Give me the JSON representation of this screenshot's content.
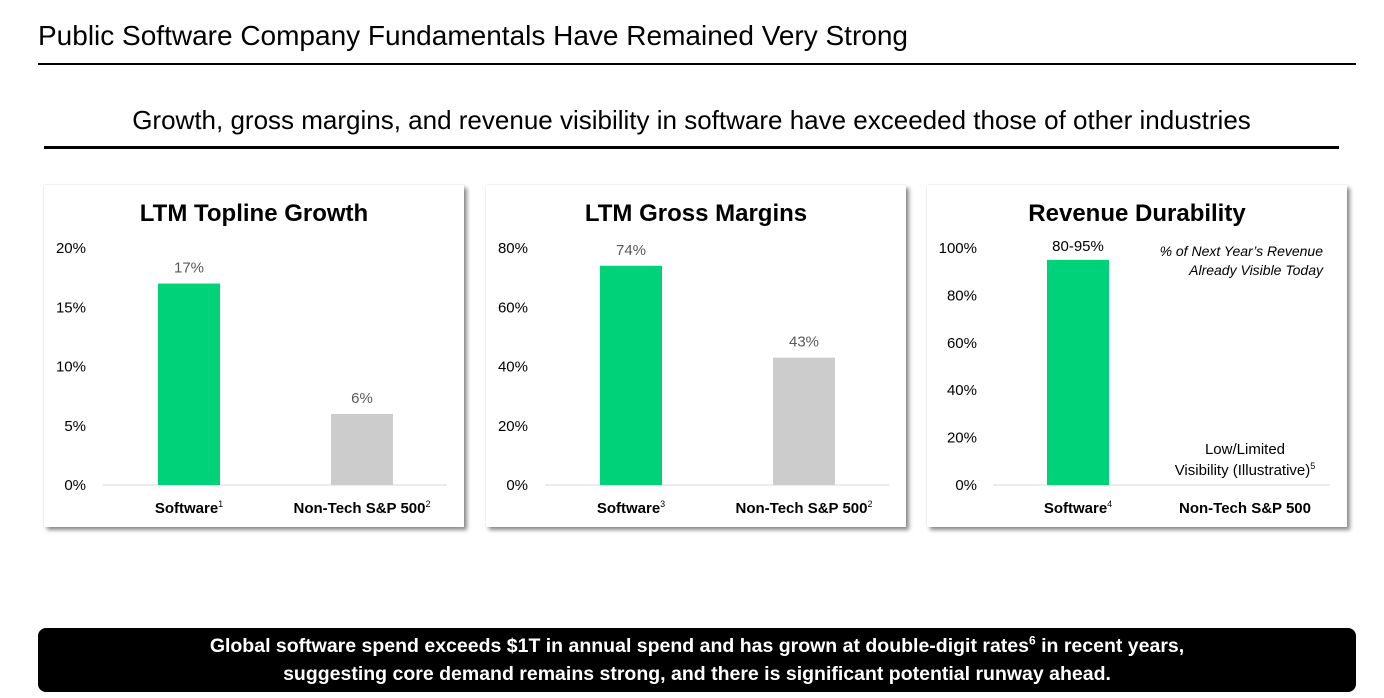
{
  "title": "Public Software Company Fundamentals Have Remained Very Strong",
  "subtitle": "Growth, gross margins, and revenue visibility in software have exceeded those of other industries",
  "colors": {
    "software": "#00d27a",
    "non_tech": "#cccccc",
    "value_label": "#595959"
  },
  "chart_data": [
    {
      "type": "bar",
      "title": "LTM Topline Growth",
      "categories": [
        "Software",
        "Non-Tech S&P 500"
      ],
      "footnotes": [
        "1",
        "2"
      ],
      "values": [
        17,
        6
      ],
      "value_labels": [
        "17%",
        "6%"
      ],
      "yticks": [
        0,
        5,
        10,
        15,
        20
      ],
      "ytick_labels": [
        "0%",
        "5%",
        "10%",
        "15%",
        "20%"
      ],
      "ylim": [
        0,
        20
      ],
      "grid": false
    },
    {
      "type": "bar",
      "title": "LTM Gross Margins",
      "categories": [
        "Software",
        "Non-Tech S&P 500"
      ],
      "footnotes": [
        "3",
        "2"
      ],
      "values": [
        74,
        43
      ],
      "value_labels": [
        "74%",
        "43%"
      ],
      "yticks": [
        0,
        20,
        40,
        60,
        80
      ],
      "ytick_labels": [
        "0%",
        "20%",
        "40%",
        "60%",
        "80%"
      ],
      "ylim": [
        0,
        80
      ],
      "grid": false
    },
    {
      "type": "bar",
      "title": "Revenue Durability",
      "categories": [
        "Software",
        "Non-Tech S&P 500"
      ],
      "footnotes": [
        "4",
        ""
      ],
      "values": [
        95,
        null
      ],
      "value_labels": [
        "80-95%",
        ""
      ],
      "yticks": [
        0,
        20,
        40,
        60,
        80,
        100
      ],
      "ytick_labels": [
        "0%",
        "20%",
        "40%",
        "60%",
        "80%",
        "100%"
      ],
      "ylim": [
        0,
        100
      ],
      "grid": false,
      "annotation_lines": [
        "% of Next Year’s Revenue",
        "Already Visible Today"
      ],
      "non_tech_note_lines": [
        "Low/Limited",
        "Visibility (Illustrative)"
      ],
      "non_tech_note_footnote": "5"
    }
  ],
  "banner": {
    "line1_a": "Global software spend exceeds $1T in annual spend and has grown at double-digit rates",
    "line1_sup": "6",
    "line1_b": " in recent years,",
    "line2": "suggesting core demand remains strong, and there is significant potential runway ahead."
  }
}
